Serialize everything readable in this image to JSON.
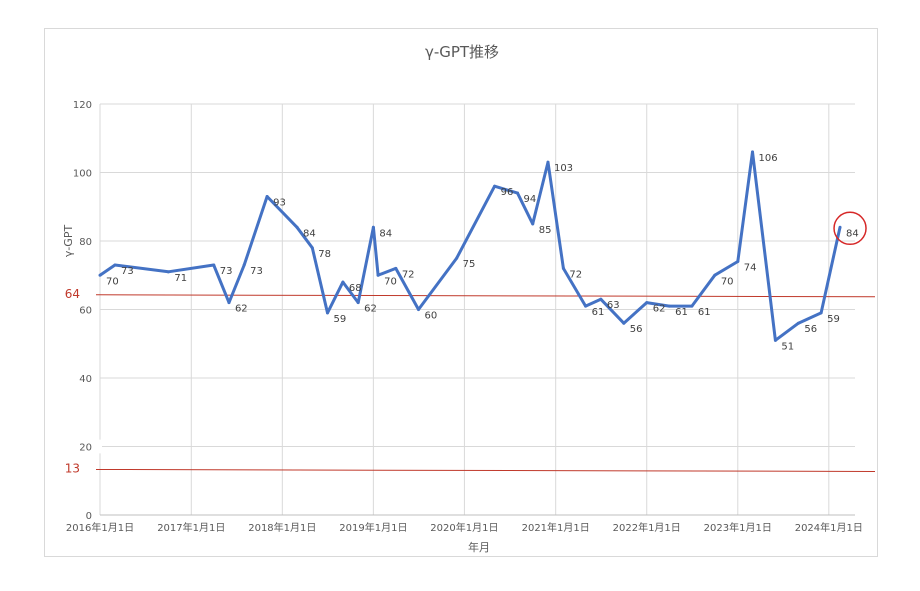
{
  "chart_data": {
    "type": "line",
    "title": "γ-GPT推移",
    "xlabel": "年月",
    "ylabel": "γ-GPT",
    "ylim": [
      0,
      120
    ],
    "yticks": [
      0,
      20,
      40,
      60,
      80,
      100,
      120
    ],
    "grid": true,
    "line_color": "#4472c4",
    "xticks": [
      {
        "date": "2016-01-01",
        "label": "2016年1月1日"
      },
      {
        "date": "2017-01-01",
        "label": "2017年1月1日"
      },
      {
        "date": "2018-01-01",
        "label": "2018年1月1日"
      },
      {
        "date": "2019-01-01",
        "label": "2019年1月1日"
      },
      {
        "date": "2020-01-01",
        "label": "2020年1月1日"
      },
      {
        "date": "2021-01-01",
        "label": "2021年1月1日"
      },
      {
        "date": "2022-01-01",
        "label": "2022年1月1日"
      },
      {
        "date": "2023-01-01",
        "label": "2023年1月1日"
      },
      {
        "date": "2024-01-01",
        "label": "2024年1月1日"
      }
    ],
    "series": [
      {
        "points": [
          {
            "x": "2016-01-01",
            "y": 70,
            "label": "70"
          },
          {
            "x": "2016-03-01",
            "y": 73,
            "label": "73"
          },
          {
            "x": "2016-10-01",
            "y": 71,
            "label": "71"
          },
          {
            "x": "2017-04-01",
            "y": 73,
            "label": "73"
          },
          {
            "x": "2017-06-01",
            "y": 62,
            "label": "62"
          },
          {
            "x": "2017-08-01",
            "y": 73,
            "label": "73"
          },
          {
            "x": "2017-11-01",
            "y": 93,
            "label": "93"
          },
          {
            "x": "2018-03-01",
            "y": 84,
            "label": "84"
          },
          {
            "x": "2018-05-01",
            "y": 78,
            "label": "78"
          },
          {
            "x": "2018-07-01",
            "y": 59,
            "label": "59"
          },
          {
            "x": "2018-09-01",
            "y": 68,
            "label": "68"
          },
          {
            "x": "2018-11-01",
            "y": 62,
            "label": "62"
          },
          {
            "x": "2019-01-01",
            "y": 84,
            "label": "84"
          },
          {
            "x": "2019-01-20",
            "y": 70,
            "label": "70"
          },
          {
            "x": "2019-04-01",
            "y": 72,
            "label": "72"
          },
          {
            "x": "2019-07-01",
            "y": 60,
            "label": "60"
          },
          {
            "x": "2019-12-01",
            "y": 75,
            "label": "75"
          },
          {
            "x": "2020-05-01",
            "y": 96,
            "label": "96"
          },
          {
            "x": "2020-08-01",
            "y": 94,
            "label": "94"
          },
          {
            "x": "2020-10-01",
            "y": 85,
            "label": "85"
          },
          {
            "x": "2020-12-01",
            "y": 103,
            "label": "103"
          },
          {
            "x": "2021-02-01",
            "y": 72,
            "label": "72"
          },
          {
            "x": "2021-05-01",
            "y": 61,
            "label": "61"
          },
          {
            "x": "2021-07-01",
            "y": 63,
            "label": "63"
          },
          {
            "x": "2021-10-01",
            "y": 56,
            "label": "56"
          },
          {
            "x": "2022-01-01",
            "y": 62,
            "label": "62"
          },
          {
            "x": "2022-04-01",
            "y": 61,
            "label": "61"
          },
          {
            "x": "2022-07-01",
            "y": 61,
            "label": "61"
          },
          {
            "x": "2022-10-01",
            "y": 70,
            "label": "70"
          },
          {
            "x": "2023-01-01",
            "y": 74,
            "label": "74"
          },
          {
            "x": "2023-03-01",
            "y": 106,
            "label": "106"
          },
          {
            "x": "2023-06-01",
            "y": 51,
            "label": "51"
          },
          {
            "x": "2023-09-01",
            "y": 56,
            "label": "56"
          },
          {
            "x": "2023-12-01",
            "y": 59,
            "label": "59"
          },
          {
            "x": "2024-02-15",
            "y": 84,
            "label": "84"
          }
        ]
      }
    ],
    "reference_lines": [
      {
        "y": 64,
        "label": "64",
        "color": "#c0392b"
      },
      {
        "y": 13,
        "label": "13",
        "color": "#c0392b"
      }
    ],
    "highlight_circle_point": 34
  }
}
